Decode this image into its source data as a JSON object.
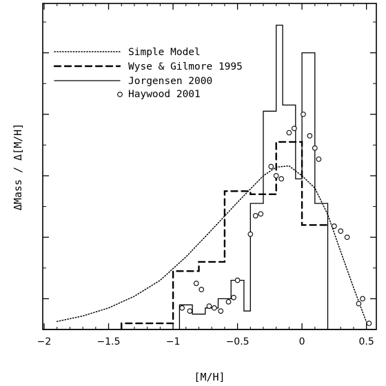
{
  "chart_data": {
    "type": "line",
    "xlabel": "[M/H]",
    "ylabel": "ΔMass / Δ[M/H]",
    "xlim": [
      -2,
      0.55
    ],
    "ylim": [
      -0.1,
      5.1
    ],
    "x_ticks": [
      -2,
      -1.5,
      -1,
      -0.5,
      0,
      0.5
    ],
    "x_tick_labels": [
      "−2",
      "−1.5",
      "−1",
      "−0.5",
      "0",
      "0.5"
    ],
    "y_ticks": [
      0.5,
      1.5,
      2.5,
      3.5,
      4.5
    ],
    "y_minor_ticks": [
      1,
      2,
      3,
      4,
      5
    ],
    "show_y_tick_labels": false,
    "grid": false,
    "legend_position": "top-left",
    "series": [
      {
        "name": "Simple Model",
        "style": "dotted",
        "x": [
          -1.9,
          -1.7,
          -1.5,
          -1.3,
          -1.1,
          -0.9,
          -0.7,
          -0.5,
          -0.3,
          -0.2,
          -0.1,
          0.0,
          0.1,
          0.2,
          0.3,
          0.4,
          0.5
        ],
        "y": [
          0.13,
          0.22,
          0.35,
          0.54,
          0.8,
          1.18,
          1.62,
          2.07,
          2.5,
          2.64,
          2.66,
          2.5,
          2.3,
          1.87,
          1.27,
          0.68,
          0.12
        ]
      },
      {
        "name": "Wyse & Gilmore 1995",
        "style": "dashed",
        "x": [
          -1.4,
          -1.4,
          -1.0,
          -1.0,
          -0.8,
          -0.8,
          -0.6,
          -0.6,
          -0.4,
          -0.4,
          -0.2,
          -0.2,
          0.0,
          0.0,
          0.2
        ],
        "y": [
          0.0,
          0.1,
          0.1,
          0.95,
          0.95,
          1.1,
          1.1,
          2.25,
          2.25,
          2.2,
          2.2,
          3.05,
          3.05,
          1.7,
          1.7
        ]
      },
      {
        "name": "Jorgensen 2000",
        "style": "solid",
        "x": [
          -0.95,
          -0.95,
          -0.85,
          -0.85,
          -0.75,
          -0.75,
          -0.65,
          -0.65,
          -0.55,
          -0.55,
          -0.45,
          -0.45,
          -0.4,
          -0.4,
          -0.3,
          -0.3,
          -0.2,
          -0.2,
          -0.15,
          -0.15,
          -0.05,
          -0.05,
          0.0,
          0.0,
          0.1,
          0.1,
          0.2,
          0.2
        ],
        "y": [
          0.0,
          0.4,
          0.4,
          0.25,
          0.25,
          0.35,
          0.35,
          0.5,
          0.5,
          0.8,
          0.8,
          0.3,
          0.3,
          2.05,
          2.05,
          3.55,
          3.55,
          4.95,
          4.95,
          3.65,
          3.65,
          2.45,
          2.45,
          4.5,
          4.5,
          2.05,
          2.05,
          0.0
        ]
      },
      {
        "name": "Haywood 2001",
        "style": "circles",
        "x": [
          -0.93,
          -0.87,
          -0.82,
          -0.78,
          -0.72,
          -0.68,
          -0.63,
          -0.57,
          -0.53,
          -0.5,
          -0.4,
          -0.36,
          -0.32,
          -0.24,
          -0.2,
          -0.16,
          -0.1,
          -0.06,
          0.01,
          0.06,
          0.1,
          0.13,
          0.25,
          0.3,
          0.35,
          0.44,
          0.47,
          0.52
        ],
        "y": [
          0.35,
          0.3,
          0.75,
          0.65,
          0.38,
          0.35,
          0.3,
          0.45,
          0.52,
          0.8,
          1.55,
          1.85,
          1.88,
          2.65,
          2.5,
          2.45,
          3.2,
          3.27,
          3.5,
          3.15,
          2.95,
          2.77,
          1.68,
          1.6,
          1.5,
          0.42,
          0.5,
          0.1
        ]
      }
    ]
  }
}
